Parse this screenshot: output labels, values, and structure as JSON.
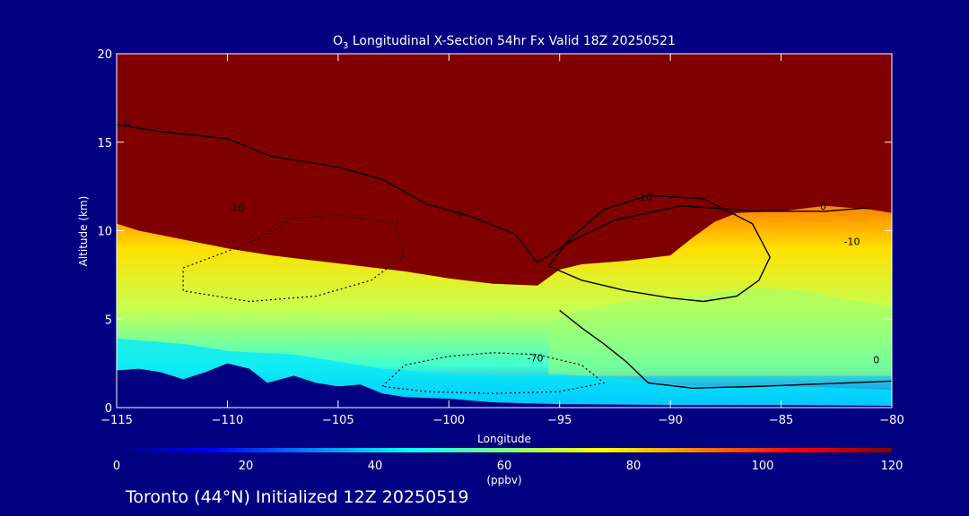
{
  "chart_data": {
    "type": "heatmap",
    "title_pre": "O",
    "title_sub": "3",
    "title_post": " Longitudinal X-Section 54hr  Fx Valid 18Z 20250521",
    "xlabel": "Longitude",
    "ylabel": "Altitude (km)",
    "xlim": [
      -115,
      -80
    ],
    "ylim": [
      0,
      20
    ],
    "xticks": [
      -115,
      -110,
      -105,
      -100,
      -95,
      -90,
      -85,
      -80
    ],
    "xtick_labels": [
      "−115",
      "−110",
      "−105",
      "−100",
      "−95",
      "−90",
      "−85",
      "−80"
    ],
    "yticks": [
      0,
      5,
      10,
      15,
      20
    ],
    "ytick_labels": [
      "0",
      "5",
      "10",
      "15",
      "20"
    ],
    "colorbar": {
      "min": 0,
      "max": 120,
      "ticks": [
        0,
        20,
        40,
        60,
        80,
        100,
        120
      ],
      "tick_labels": [
        "0",
        "20",
        "40",
        "60",
        "80",
        "100",
        "120"
      ],
      "unit": "(ppbv)",
      "colors": [
        "#00007a",
        "#0000ff",
        "#0080ff",
        "#00ffff",
        "#80ff80",
        "#ffff00",
        "#ff8000",
        "#ff0000",
        "#800000"
      ]
    },
    "contour_labels": [
      {
        "text": "0",
        "lon": -114.5,
        "alt": 15.9
      },
      {
        "text": "-10",
        "lon": -109.6,
        "alt": 11.1
      },
      {
        "text": "0",
        "lon": -99.5,
        "alt": 10.8
      },
      {
        "text": "10",
        "lon": -91.1,
        "alt": 11.7
      },
      {
        "text": "0",
        "lon": -83.1,
        "alt": 11.2
      },
      {
        "text": "-10",
        "lon": -81.8,
        "alt": 9.2
      },
      {
        "text": "-70",
        "lon": -96.1,
        "alt": 2.6
      },
      {
        "text": "0",
        "lon": -80.7,
        "alt": 2.5
      }
    ],
    "terrain": [
      [
        -115,
        2.1
      ],
      [
        -114,
        2.2
      ],
      [
        -113,
        2.0
      ],
      [
        -112,
        1.6
      ],
      [
        -111,
        2.0
      ],
      [
        -110,
        2.5
      ],
      [
        -109,
        2.2
      ],
      [
        -108.2,
        1.4
      ],
      [
        -107,
        1.8
      ],
      [
        -106,
        1.4
      ],
      [
        -105,
        1.2
      ],
      [
        -104,
        1.3
      ],
      [
        -103,
        0.8
      ],
      [
        -102,
        0.6
      ],
      [
        -100,
        0.5
      ],
      [
        -98,
        0.3
      ],
      [
        -95,
        0.2
      ],
      [
        -90,
        0.15
      ],
      [
        -85,
        0.15
      ],
      [
        -80,
        0.1
      ]
    ],
    "tropopause": [
      [
        -115,
        10.4
      ],
      [
        -114,
        10.0
      ],
      [
        -112,
        9.5
      ],
      [
        -110,
        9.0
      ],
      [
        -108,
        8.6
      ],
      [
        -106,
        8.3
      ],
      [
        -104,
        8.0
      ],
      [
        -102,
        7.7
      ],
      [
        -100,
        7.3
      ],
      [
        -98,
        7.0
      ],
      [
        -96,
        6.9
      ],
      [
        -95,
        7.8
      ],
      [
        -94,
        8.1
      ],
      [
        -92,
        8.3
      ],
      [
        -90,
        8.6
      ],
      [
        -89,
        9.6
      ],
      [
        -88,
        10.5
      ],
      [
        -87,
        11.0
      ],
      [
        -85,
        11.1
      ],
      [
        -83,
        11.4
      ],
      [
        -81,
        11.2
      ],
      [
        -80,
        11.0
      ]
    ],
    "low_o3_region": [
      [
        -115,
        3.9
      ],
      [
        -112,
        3.6
      ],
      [
        -110,
        3.2
      ],
      [
        -107,
        3.0
      ],
      [
        -105,
        2.6
      ],
      [
        -103,
        2.2
      ],
      [
        -100,
        1.9
      ],
      [
        -97,
        1.8
      ],
      [
        -95,
        1.9
      ],
      [
        -92,
        1.6
      ],
      [
        -90,
        1.3
      ],
      [
        -87,
        1.1
      ],
      [
        -85,
        1.2
      ],
      [
        -82,
        1.1
      ],
      [
        -80,
        1.0
      ]
    ],
    "mid_o3_region": [
      [
        -95.5,
        4.8
      ],
      [
        -94,
        5.5
      ],
      [
        -92,
        6.0
      ],
      [
        -90,
        6.2
      ],
      [
        -88,
        6.5
      ],
      [
        -86,
        6.8
      ],
      [
        -84,
        6.6
      ],
      [
        -82,
        6.1
      ],
      [
        -80,
        5.7
      ]
    ]
  },
  "footer": {
    "text": "Toronto (44°N) Initialized 12Z 20250519"
  }
}
